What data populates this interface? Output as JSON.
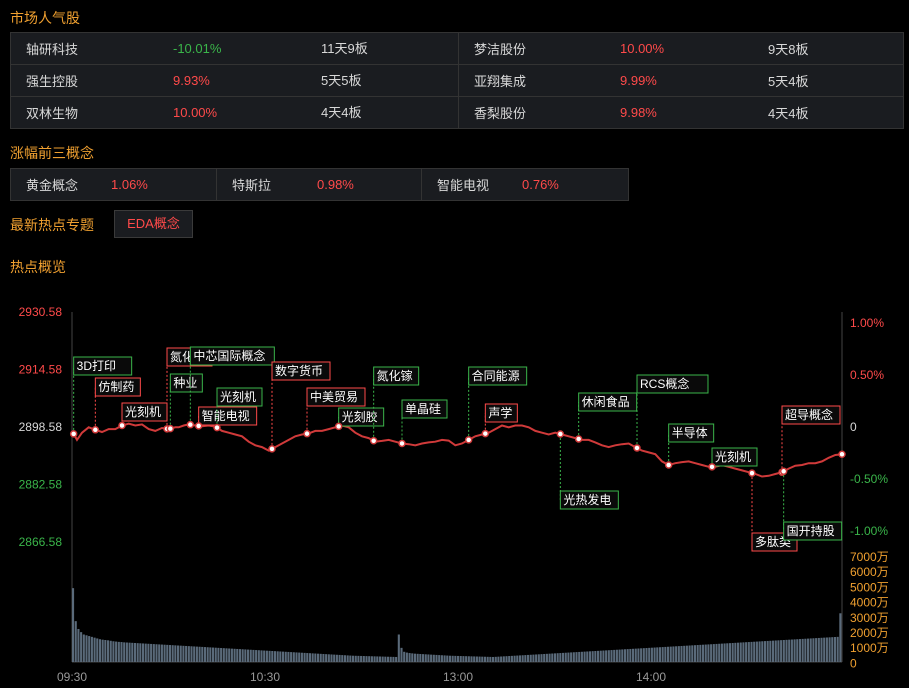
{
  "sections": {
    "popular": "市场人气股",
    "top_concepts": "涨幅前三概念",
    "latest_hot": "最新热点专题",
    "overview": "热点概览"
  },
  "popular_stocks": [
    [
      {
        "name": "轴研科技",
        "change": "-10.01%",
        "streak": "11天9板",
        "dir": "down"
      },
      {
        "name": "梦洁股份",
        "change": "10.00%",
        "streak": "9天8板",
        "dir": "up"
      }
    ],
    [
      {
        "name": "强生控股",
        "change": "9.93%",
        "streak": "5天5板",
        "dir": "up"
      },
      {
        "name": "亚翔集成",
        "change": "9.99%",
        "streak": "5天4板",
        "dir": "up"
      }
    ],
    [
      {
        "name": "双林生物",
        "change": "10.00%",
        "streak": "4天4板",
        "dir": "up"
      },
      {
        "name": "香梨股份",
        "change": "9.98%",
        "streak": "4天4板",
        "dir": "up"
      }
    ]
  ],
  "top_concepts": [
    {
      "name": "黄金概念",
      "change": "1.06%"
    },
    {
      "name": "特斯拉",
      "change": "0.98%"
    },
    {
      "name": "智能电视",
      "change": "0.76%"
    }
  ],
  "latest_hot_tag": "EDA概念",
  "colors": {
    "up": "#ff4a4a",
    "down": "#3ab54a",
    "accent": "#f0a030",
    "line": "#d03a3a",
    "volume": "#5a6a7a"
  },
  "chart_data": {
    "type": "line",
    "price_axis": {
      "ticks": [
        "2930.58",
        "2914.58",
        "2898.58",
        "2882.58",
        "2866.58"
      ],
      "range": [
        2866.58,
        2930.58
      ]
    },
    "pct_axis": {
      "ticks": [
        "1.00%",
        "0.50%",
        "0",
        "-0.50%",
        "-1.00%"
      ],
      "range": [
        -1.0,
        1.0
      ]
    },
    "volume_axis": {
      "ticks": [
        "7000万",
        "6000万",
        "5000万",
        "4000万",
        "3000万",
        "2000万",
        "1000万",
        "0"
      ],
      "range": [
        0,
        7000
      ]
    },
    "x_ticks": [
      "09:30",
      "10:30",
      "13:00",
      "14:00"
    ],
    "price_series": [
      [
        0,
        2897.5
      ],
      [
        3,
        2895
      ],
      [
        6,
        2897
      ],
      [
        10,
        2898.5
      ],
      [
        14,
        2897.8
      ],
      [
        18,
        2897.2
      ],
      [
        22,
        2898
      ],
      [
        26,
        2898
      ],
      [
        30,
        2899
      ],
      [
        34,
        2899.5
      ],
      [
        38,
        2899
      ],
      [
        42,
        2899.3
      ],
      [
        46,
        2898
      ],
      [
        50,
        2897.5
      ],
      [
        54,
        2898.3
      ],
      [
        58,
        2898
      ],
      [
        62,
        2898.5
      ],
      [
        64,
        2898.5
      ],
      [
        67,
        2899
      ],
      [
        70,
        2899.3
      ],
      [
        74,
        2899
      ],
      [
        78,
        2898.8
      ],
      [
        82,
        2899
      ],
      [
        86,
        2898.7
      ],
      [
        90,
        2897.5
      ],
      [
        94,
        2897
      ],
      [
        98,
        2896.5
      ],
      [
        102,
        2896
      ],
      [
        106,
        2894.5
      ],
      [
        110,
        2893.5
      ],
      [
        114,
        2893
      ],
      [
        118,
        2892
      ],
      [
        122,
        2893
      ],
      [
        126,
        2894
      ],
      [
        130,
        2895
      ],
      [
        134,
        2896
      ],
      [
        138,
        2896.5
      ],
      [
        142,
        2896.8
      ],
      [
        146,
        2897.5
      ],
      [
        150,
        2897.5
      ],
      [
        154,
        2898
      ],
      [
        158,
        2898.5
      ],
      [
        162,
        2899
      ],
      [
        166,
        2898.5
      ],
      [
        170,
        2897
      ],
      [
        174,
        2896
      ],
      [
        178,
        2895.5
      ],
      [
        182,
        2894.5
      ],
      [
        186,
        2894.7
      ],
      [
        190,
        2895
      ],
      [
        194,
        2894.5
      ],
      [
        198,
        2894
      ],
      [
        202,
        2893.8
      ],
      [
        206,
        2893.5
      ],
      [
        210,
        2894
      ],
      [
        214,
        2894.3
      ],
      [
        218,
        2894.5
      ],
      [
        222,
        2895
      ],
      [
        226,
        2894.8
      ],
      [
        230,
        2893.5
      ],
      [
        234,
        2894
      ],
      [
        238,
        2895
      ],
      [
        242,
        2896
      ],
      [
        246,
        2896.5
      ],
      [
        250,
        2897
      ],
      [
        254,
        2898
      ],
      [
        258,
        2899
      ],
      [
        262,
        2898.5
      ],
      [
        266,
        2899
      ],
      [
        270,
        2899
      ],
      [
        274,
        2898.5
      ],
      [
        278,
        2897.5
      ],
      [
        282,
        2897
      ],
      [
        286,
        2896.5
      ],
      [
        290,
        2897
      ],
      [
        294,
        2896.5
      ],
      [
        298,
        2896
      ],
      [
        302,
        2895.5
      ],
      [
        306,
        2895
      ],
      [
        310,
        2895
      ],
      [
        314,
        2894.3
      ],
      [
        318,
        2893.5
      ],
      [
        322,
        2893
      ],
      [
        326,
        2893.5
      ],
      [
        330,
        2893.8
      ],
      [
        334,
        2894
      ],
      [
        338,
        2893
      ],
      [
        342,
        2892
      ],
      [
        346,
        2891.5
      ],
      [
        350,
        2891
      ],
      [
        354,
        2889
      ],
      [
        358,
        2888
      ],
      [
        362,
        2888.5
      ],
      [
        366,
        2888.8
      ],
      [
        370,
        2889
      ],
      [
        374,
        2888.5
      ],
      [
        378,
        2888
      ],
      [
        382,
        2887.5
      ],
      [
        386,
        2887.5
      ],
      [
        390,
        2888
      ],
      [
        394,
        2887.5
      ],
      [
        398,
        2887
      ],
      [
        402,
        2886.5
      ],
      [
        406,
        2886
      ],
      [
        410,
        2885.5
      ],
      [
        414,
        2884.8
      ],
      [
        418,
        2885
      ],
      [
        422,
        2885.5
      ],
      [
        426,
        2886
      ],
      [
        430,
        2887
      ],
      [
        434,
        2887.8
      ],
      [
        438,
        2888
      ],
      [
        442,
        2888.5
      ],
      [
        446,
        2888.5
      ],
      [
        450,
        2889
      ],
      [
        454,
        2890
      ],
      [
        458,
        2890.8
      ],
      [
        462,
        2891
      ]
    ],
    "annotations": [
      {
        "label": "3D打印",
        "x": 1,
        "kind": "up"
      },
      {
        "label": "仿制药",
        "x": 14,
        "kind": "down"
      },
      {
        "label": "光刻机",
        "x": 30,
        "kind": "down"
      },
      {
        "label": "氮化镓",
        "x": 57,
        "kind": "down"
      },
      {
        "label": "种业",
        "x": 59,
        "kind": "up"
      },
      {
        "label": "中芯国际概念",
        "x": 71,
        "kind": "up"
      },
      {
        "label": "智能电视",
        "x": 76,
        "kind": "down"
      },
      {
        "label": "光刻机",
        "x": 87,
        "kind": "up"
      },
      {
        "label": "数字货币",
        "x": 120,
        "kind": "down"
      },
      {
        "label": "中美贸易",
        "x": 141,
        "kind": "down"
      },
      {
        "label": "光刻胶",
        "x": 160,
        "kind": "up"
      },
      {
        "label": "氮化镓",
        "x": 181,
        "kind": "up"
      },
      {
        "label": "单晶硅",
        "x": 198,
        "kind": "up"
      },
      {
        "label": "合同能源",
        "x": 238,
        "kind": "up"
      },
      {
        "label": "声学",
        "x": 248,
        "kind": "down"
      },
      {
        "label": "光热发电",
        "x": 293,
        "kind": "up"
      },
      {
        "label": "休闲食品",
        "x": 304,
        "kind": "up"
      },
      {
        "label": "RCS概念",
        "x": 339,
        "kind": "up"
      },
      {
        "label": "半导体",
        "x": 358,
        "kind": "up"
      },
      {
        "label": "光刻机",
        "x": 384,
        "kind": "up"
      },
      {
        "label": "多肽类",
        "x": 408,
        "kind": "down"
      },
      {
        "label": "超导概念",
        "x": 426,
        "kind": "down"
      },
      {
        "label": "国开持股",
        "x": 427,
        "kind": "up"
      },
      {
        "label": "",
        "x": 462,
        "kind": "none"
      }
    ],
    "volume_series": [
      4700,
      2600,
      2100,
      1900,
      1750,
      1700,
      1650,
      1600,
      1550,
      1500,
      1450,
      1420,
      1400,
      1380,
      1350,
      1320,
      1300,
      1280,
      1270,
      1250,
      1240,
      1230,
      1220,
      1210,
      1200,
      1190,
      1180,
      1170,
      1160,
      1150,
      1140,
      1130,
      1120,
      1110,
      1100,
      1090,
      1080,
      1070,
      1060,
      1050,
      1040,
      1030,
      1020,
      1010,
      1000,
      990,
      980,
      970,
      960,
      950,
      940,
      930,
      920,
      910,
      900,
      890,
      880,
      870,
      860,
      850,
      840,
      830,
      820,
      810,
      800,
      790,
      780,
      770,
      760,
      750,
      740,
      730,
      720,
      710,
      700,
      690,
      680,
      670,
      660,
      650,
      640,
      630,
      620,
      610,
      600,
      590,
      580,
      570,
      560,
      550,
      540,
      530,
      520,
      510,
      500,
      490,
      480,
      470,
      460,
      450,
      440,
      430,
      420,
      410,
      400,
      395,
      390,
      385,
      380,
      375,
      370,
      365,
      360,
      355,
      350,
      345,
      340,
      335,
      330,
      325,
      320,
      1750,
      900,
      650,
      600,
      570,
      550,
      530,
      520,
      510,
      500,
      490,
      480,
      470,
      460,
      450,
      440,
      430,
      420,
      410,
      400,
      395,
      390,
      385,
      380,
      375,
      370,
      365,
      360,
      355,
      350,
      345,
      340,
      335,
      330,
      325,
      320,
      330,
      340,
      350,
      360,
      370,
      380,
      390,
      400,
      410,
      420,
      430,
      440,
      450,
      460,
      470,
      480,
      490,
      500,
      510,
      520,
      530,
      540,
      550,
      560,
      570,
      580,
      590,
      600,
      610,
      620,
      630,
      640,
      650,
      660,
      670,
      680,
      690,
      700,
      710,
      720,
      730,
      740,
      750,
      760,
      770,
      780,
      790,
      800,
      810,
      820,
      830,
      840,
      850,
      860,
      870,
      880,
      890,
      900,
      910,
      920,
      930,
      940,
      950,
      960,
      970,
      980,
      990,
      1000,
      1010,
      1020,
      1030,
      1040,
      1050,
      1060,
      1070,
      1080,
      1090,
      1100,
      1110,
      1120,
      1130,
      1140,
      1150,
      1160,
      1170,
      1180,
      1190,
      1200,
      1210,
      1220,
      1230,
      1240,
      1250,
      1260,
      1270,
      1280,
      1290,
      1300,
      1310,
      1320,
      1330,
      1340,
      1350,
      1360,
      1370,
      1380,
      1390,
      1400,
      1410,
      1420,
      1430,
      1440,
      1450,
      1460,
      1470,
      1480,
      1490,
      1500,
      1510,
      1520,
      1530,
      1540,
      1550,
      1560,
      1570,
      1580,
      1590,
      1600,
      3100
    ]
  }
}
